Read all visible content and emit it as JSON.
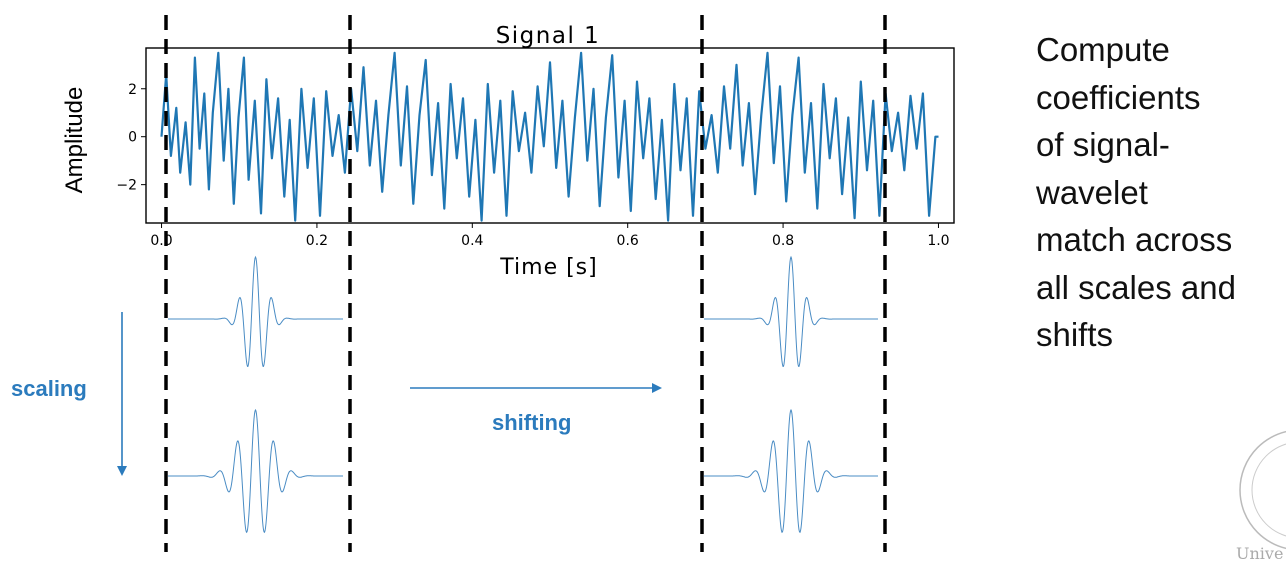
{
  "chart_data": {
    "type": "line",
    "title": "Signal 1",
    "xlabel": "Time [s]",
    "ylabel": "Amplitude",
    "xlim": [
      -0.02,
      1.02
    ],
    "ylim": [
      -3.6,
      3.7
    ],
    "xticks": [
      0.0,
      0.2,
      0.4,
      0.6,
      0.8,
      1.0
    ],
    "xtick_labels": [
      "0.0",
      "0.2",
      "0.4",
      "0.6",
      "0.8",
      "1.0"
    ],
    "yticks": [
      2,
      0,
      -2
    ],
    "ytick_labels": [
      "2",
      "0",
      "−2"
    ],
    "line_color": "#1f77b4",
    "grid": false,
    "series": [
      {
        "x": [
          0.0,
          0.006,
          0.012,
          0.019,
          0.024,
          0.031,
          0.037,
          0.043,
          0.049,
          0.055,
          0.061,
          0.066,
          0.073,
          0.08,
          0.086,
          0.093,
          0.099,
          0.106,
          0.112,
          0.12,
          0.128,
          0.135,
          0.142,
          0.15,
          0.158,
          0.165,
          0.172,
          0.18,
          0.188,
          0.196,
          0.204,
          0.212,
          0.22,
          0.228,
          0.236,
          0.244,
          0.252,
          0.26,
          0.268,
          0.276,
          0.284,
          0.292,
          0.3,
          0.308,
          0.316,
          0.324,
          0.332,
          0.34,
          0.348,
          0.356,
          0.364,
          0.372,
          0.38,
          0.388,
          0.396,
          0.404,
          0.412,
          0.42,
          0.428,
          0.436,
          0.444,
          0.452,
          0.46,
          0.468,
          0.476,
          0.484,
          0.492,
          0.5,
          0.508,
          0.516,
          0.524,
          0.532,
          0.54,
          0.548,
          0.556,
          0.564,
          0.572,
          0.58,
          0.588,
          0.596,
          0.604,
          0.612,
          0.62,
          0.628,
          0.636,
          0.644,
          0.652,
          0.66,
          0.668,
          0.676,
          0.684,
          0.692,
          0.7,
          0.708,
          0.716,
          0.724,
          0.732,
          0.74,
          0.748,
          0.756,
          0.764,
          0.772,
          0.78,
          0.788,
          0.796,
          0.804,
          0.812,
          0.82,
          0.828,
          0.836,
          0.844,
          0.852,
          0.86,
          0.868,
          0.876,
          0.884,
          0.892,
          0.9,
          0.908,
          0.916,
          0.924,
          0.932,
          0.94,
          0.948,
          0.956,
          0.964,
          0.972,
          0.98,
          0.988,
          0.996,
          1.0
        ],
        "y": [
          0.0,
          2.6,
          -0.8,
          1.2,
          -1.5,
          0.6,
          -2.0,
          3.3,
          -0.5,
          1.8,
          -2.2,
          1.0,
          3.5,
          -1.0,
          2.0,
          -2.8,
          0.8,
          3.3,
          -1.8,
          1.5,
          -3.2,
          2.4,
          -0.9,
          1.6,
          -2.5,
          0.7,
          -3.5,
          2.0,
          -1.3,
          1.6,
          -3.3,
          1.9,
          -0.8,
          0.9,
          -1.5,
          2.0,
          -0.6,
          2.9,
          -1.2,
          1.5,
          -2.3,
          0.9,
          3.5,
          -1.2,
          2.1,
          -2.8,
          0.9,
          3.2,
          -1.6,
          1.4,
          -3.0,
          2.2,
          -0.9,
          1.6,
          -2.5,
          0.7,
          -3.5,
          2.2,
          -1.5,
          1.5,
          -3.3,
          1.9,
          -0.6,
          1.0,
          -1.5,
          2.1,
          -0.4,
          3.1,
          -1.3,
          1.5,
          -2.5,
          0.8,
          3.5,
          -1.0,
          2.0,
          -2.9,
          0.8,
          3.4,
          -1.7,
          1.5,
          -3.1,
          2.3,
          -0.9,
          1.6,
          -2.6,
          0.7,
          -3.5,
          2.2,
          -1.4,
          1.6,
          -3.3,
          1.9,
          -0.5,
          0.9,
          -1.5,
          2.1,
          -0.5,
          3.0,
          -1.2,
          1.4,
          -2.4,
          0.9,
          3.5,
          -1.1,
          2.1,
          -2.7,
          0.9,
          3.3,
          -1.5,
          1.4,
          -3.0,
          2.2,
          -0.9,
          1.6,
          -2.4,
          0.8,
          -3.4,
          2.3,
          -1.4,
          1.5,
          -3.3,
          1.8,
          -0.6,
          1.0,
          -1.4,
          1.7,
          -0.5,
          1.8,
          -3.3,
          0.0,
          0.0
        ]
      }
    ]
  },
  "annotations": {
    "scaling_label": "scaling",
    "shifting_label": "shifting"
  },
  "description_lines": [
    "Compute",
    "coefficients",
    "of signal-",
    "wavelet",
    "match across",
    "all scales and",
    "shifts"
  ],
  "colors": {
    "accent": "#2b7bbd",
    "wavelet": "#4a8cc4",
    "dashes": "#000000"
  },
  "seal_fragment": "Unive"
}
